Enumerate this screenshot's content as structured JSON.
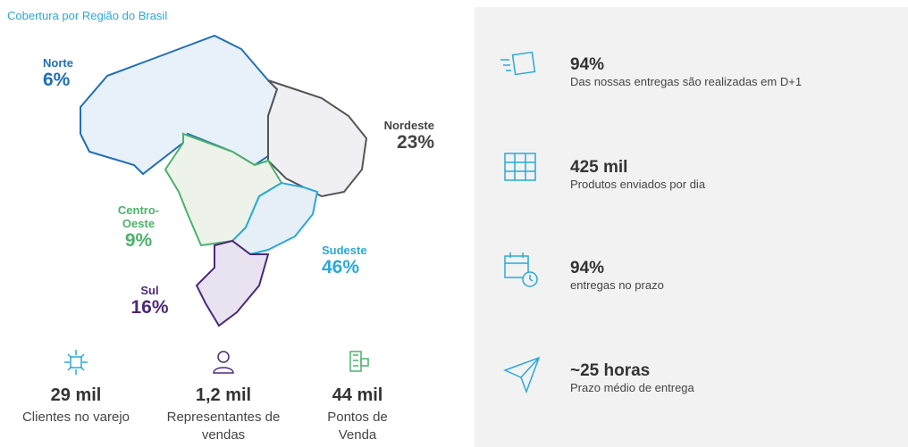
{
  "title": "Cobertura por Região do Brasil",
  "regions": [
    {
      "name": "Norte",
      "share": "6%"
    },
    {
      "name": "Nordeste",
      "share": "23%"
    },
    {
      "name": "Centro-Oeste",
      "share": "9%"
    },
    {
      "name": "Sudeste",
      "share": "46%"
    },
    {
      "name": "Sul",
      "share": "16%"
    }
  ],
  "bottom_stats": [
    {
      "value": "29 mil",
      "label": "Clientes no varejo"
    },
    {
      "value": "1,2 mil",
      "label": "Representantes de vendas"
    },
    {
      "value": "44 mil",
      "label": "Pontos de Venda"
    }
  ],
  "panel_stats": [
    {
      "value": "94%",
      "label": "Das nossas entregas são realizadas em D+1"
    },
    {
      "value": "425 mil",
      "label": "Produtos enviados por dia"
    },
    {
      "value": "94%",
      "label": "entregas no prazo"
    },
    {
      "value": "~25 horas",
      "label": "Prazo médio de entrega"
    }
  ]
}
